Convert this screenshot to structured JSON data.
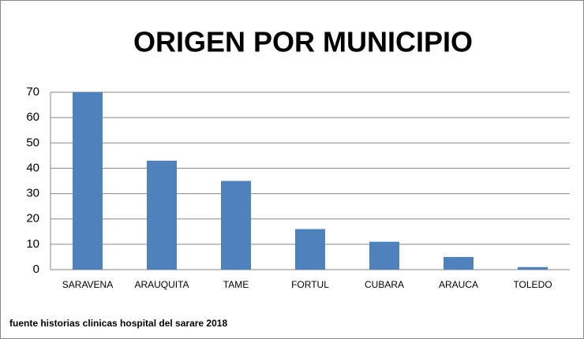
{
  "chart_data": {
    "type": "bar",
    "title": "ORIGEN POR MUNICIPIO",
    "categories": [
      "SARAVENA",
      "ARAUQUITA",
      "TAME",
      "FORTUL",
      "CUBARA",
      "ARAUCA",
      "TOLEDO"
    ],
    "values": [
      70,
      43,
      35,
      16,
      11,
      5,
      1
    ],
    "color": "#4f81bd",
    "ylim": [
      0,
      70
    ],
    "yticks": [
      0,
      10,
      20,
      30,
      40,
      50,
      60,
      70
    ],
    "grid": true,
    "source": "fuente historias clinicas hospital del sarare 2018"
  }
}
